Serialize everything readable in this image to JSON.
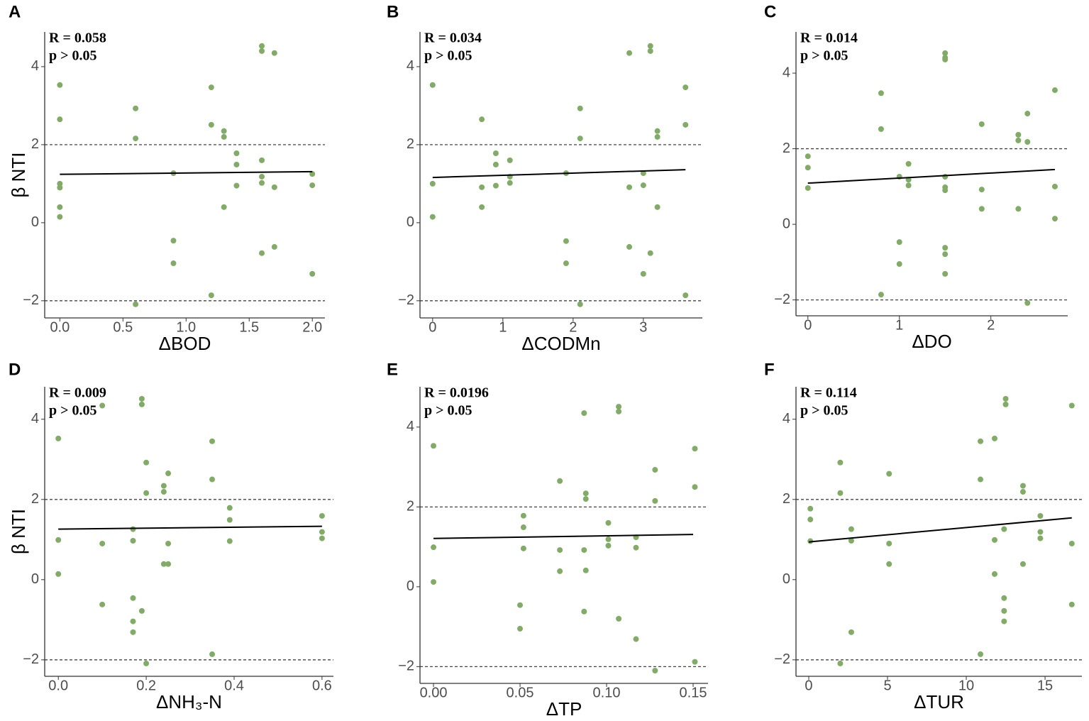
{
  "chart_data": [
    {
      "type": "scatter",
      "panel": "A",
      "annotations": [
        "R = 0.058",
        "p > 0.05"
      ],
      "xlabel": "ΔBOD",
      "ylabel": "β NTI",
      "xlim": [
        -0.12,
        2.1
      ],
      "ylim": [
        -2.44,
        4.89
      ],
      "xticks": [
        {
          "value": 0,
          "label": "0.0"
        },
        {
          "value": 0.5,
          "label": "0.5"
        },
        {
          "value": 1,
          "label": "1.0"
        },
        {
          "value": 1.5,
          "label": "1.5"
        },
        {
          "value": 2,
          "label": "2.0"
        }
      ],
      "yticks": [
        {
          "value": -2,
          "label": "−2"
        },
        0,
        2,
        4
      ],
      "hlines": [
        -2,
        2
      ],
      "color": "#82ab68",
      "x": [
        0,
        0,
        0,
        0,
        0,
        0,
        0.6,
        0.6,
        0.6,
        0.9,
        0.9,
        0.9,
        1.2,
        1.2,
        1.2,
        1.3,
        1.3,
        1.3,
        1.4,
        1.4,
        1.4,
        1.6,
        1.6,
        1.6,
        1.6,
        1.6,
        1.6,
        1.7,
        1.7,
        1.7,
        2.0,
        2.0,
        2.0
      ],
      "y": [
        3.53,
        2.65,
        1.0,
        0.9,
        0.4,
        0.15,
        2.93,
        2.16,
        -2.09,
        1.27,
        -0.46,
        -1.04,
        3.47,
        2.51,
        -1.86,
        2.35,
        2.2,
        0.4,
        1.78,
        1.49,
        0.95,
        4.53,
        4.4,
        1.6,
        1.18,
        1.02,
        -0.78,
        4.35,
        0.91,
        -0.62,
        1.25,
        0.96,
        -1.31
      ],
      "fit": {
        "x": [
          0,
          2.0
        ],
        "y": [
          1.24,
          1.31
        ]
      }
    },
    {
      "type": "scatter",
      "panel": "B",
      "annotations": [
        "R = 0.034",
        "p > 0.05"
      ],
      "xlabel": "ΔCODMn",
      "xlim": [
        -0.18,
        3.84
      ],
      "ylim": [
        -2.44,
        4.89
      ],
      "xticks": [
        0,
        1,
        2,
        3
      ],
      "yticks": [
        {
          "value": -2,
          "label": "−2"
        },
        0,
        2,
        4
      ],
      "hlines": [
        -2,
        2
      ],
      "color": "#82ab68",
      "x": [
        0,
        0,
        0,
        0.7,
        0.7,
        0.7,
        0.9,
        0.9,
        0.9,
        1.1,
        1.1,
        1.1,
        1.9,
        1.9,
        1.9,
        2.1,
        2.1,
        2.1,
        2.8,
        2.8,
        2.8,
        3.0,
        3.0,
        3.0,
        3.1,
        3.1,
        3.1,
        3.2,
        3.2,
        3.2,
        3.6,
        3.6,
        3.6
      ],
      "y": [
        3.53,
        1.0,
        0.15,
        2.65,
        0.91,
        0.4,
        1.78,
        1.49,
        0.95,
        1.6,
        1.18,
        1.02,
        1.27,
        -0.47,
        -1.04,
        2.93,
        2.16,
        -2.09,
        4.35,
        0.91,
        -0.62,
        1.27,
        0.96,
        -1.31,
        4.53,
        4.4,
        -0.78,
        2.35,
        2.2,
        0.4,
        3.47,
        2.51,
        -1.86
      ],
      "fit": {
        "x": [
          0,
          3.6
        ],
        "y": [
          1.16,
          1.36
        ]
      }
    },
    {
      "type": "scatter",
      "panel": "C",
      "annotations": [
        "R = 0.014",
        "p > 0.05"
      ],
      "xlabel": "ΔDO",
      "xlim": [
        -0.13,
        2.84
      ],
      "ylim": [
        -2.42,
        5.09
      ],
      "xticks": [
        0,
        1,
        2
      ],
      "yticks": [
        {
          "value": -2,
          "label": "−2"
        },
        0,
        2,
        4
      ],
      "hlines": [
        -2,
        2
      ],
      "color": "#82ab68",
      "x": [
        0,
        0,
        0,
        0.8,
        0.8,
        0.8,
        1.0,
        1.0,
        1.0,
        1.1,
        1.1,
        1.1,
        1.5,
        1.5,
        1.5,
        1.5,
        1.5,
        1.5,
        1.5,
        1.5,
        1.5,
        1.9,
        1.9,
        1.9,
        2.3,
        2.3,
        2.3,
        2.4,
        2.4,
        2.4,
        2.7,
        2.7,
        2.7
      ],
      "y": [
        1.8,
        1.5,
        0.96,
        3.47,
        2.52,
        -1.86,
        1.26,
        -0.47,
        -1.05,
        1.6,
        1.18,
        1.03,
        4.53,
        4.41,
        4.36,
        1.26,
        0.98,
        0.9,
        -0.62,
        -0.79,
        -1.31,
        2.65,
        0.92,
        0.41,
        2.37,
        2.22,
        0.41,
        2.93,
        2.18,
        -2.08,
        3.55,
        1.0,
        0.15
      ],
      "fit": {
        "x": [
          0,
          2.7
        ],
        "y": [
          1.09,
          1.45
        ]
      }
    },
    {
      "type": "scatter",
      "panel": "D",
      "annotations": [
        "R = 0.009",
        "p > 0.05"
      ],
      "xlabel": "ΔNH₃-N",
      "ylabel": "β NTI",
      "xlim": [
        -0.031,
        0.626
      ],
      "ylim": [
        -2.41,
        4.81
      ],
      "xticks": [
        {
          "value": 0,
          "label": "0.0"
        },
        0.2,
        0.4,
        0.6
      ],
      "yticks": [
        {
          "value": -2,
          "label": "−2"
        },
        0,
        2,
        4
      ],
      "hlines": [
        -2,
        2
      ],
      "color": "#82ab68",
      "x": [
        0,
        0,
        0,
        0.1,
        0.1,
        0.1,
        0.17,
        0.17,
        0.17,
        0.17,
        0.17,
        0.19,
        0.19,
        0.19,
        0.2,
        0.2,
        0.2,
        0.24,
        0.24,
        0.24,
        0.25,
        0.25,
        0.25,
        0.35,
        0.35,
        0.35,
        0.39,
        0.39,
        0.39,
        0.6,
        0.6,
        0.6
      ],
      "y": [
        3.52,
        0.99,
        0.14,
        4.34,
        0.9,
        -0.62,
        1.26,
        0.97,
        -0.46,
        -1.04,
        -1.31,
        4.51,
        4.37,
        -0.78,
        2.92,
        2.16,
        -2.09,
        2.34,
        2.19,
        0.39,
        2.65,
        0.9,
        0.39,
        3.45,
        2.5,
        -1.86,
        1.79,
        1.49,
        0.96,
        1.59,
        1.19,
        1.03
      ],
      "fit": {
        "x": [
          0,
          0.6
        ],
        "y": [
          1.26,
          1.33
        ]
      }
    },
    {
      "type": "scatter",
      "panel": "E",
      "annotations": [
        "R = 0.0196",
        "p > 0.05"
      ],
      "xlabel": "ΔTP",
      "xlim": [
        -0.0078,
        0.1586
      ],
      "ylim": [
        -2.42,
        5.01
      ],
      "xticks": [
        {
          "value": 0,
          "label": "0.00"
        },
        0.05,
        {
          "value": 0.1,
          "label": "0.10"
        },
        0.15
      ],
      "yticks": [
        {
          "value": -2,
          "label": "−2"
        },
        0,
        2,
        4
      ],
      "hlines": [
        -2,
        2
      ],
      "color": "#82ab68",
      "x": [
        0,
        0,
        0,
        0.05,
        0.05,
        0.052,
        0.052,
        0.052,
        0.073,
        0.073,
        0.073,
        0.087,
        0.087,
        0.087,
        0.088,
        0.088,
        0.088,
        0.101,
        0.101,
        0.101,
        0.107,
        0.107,
        0.107,
        0.117,
        0.117,
        0.117,
        0.128,
        0.128,
        0.128,
        0.151,
        0.151,
        0.151
      ],
      "y": [
        3.53,
        0.99,
        0.12,
        -0.46,
        -1.05,
        1.78,
        1.49,
        0.96,
        2.65,
        0.92,
        0.39,
        4.35,
        0.92,
        -0.62,
        2.34,
        2.2,
        0.41,
        1.6,
        1.19,
        1.03,
        4.51,
        4.39,
        -0.8,
        1.24,
        0.98,
        -1.31,
        2.93,
        2.15,
        -2.1,
        3.46,
        2.5,
        -1.88
      ],
      "fit": {
        "x": [
          0,
          0.15
        ],
        "y": [
          1.21,
          1.31
        ]
      }
    },
    {
      "type": "scatter",
      "panel": "F",
      "annotations": [
        "R = 0.114",
        "p > 0.05"
      ],
      "xlabel": "ΔTUR",
      "xlim": [
        -0.81,
        17.34
      ],
      "ylim": [
        -2.41,
        4.81
      ],
      "xticks": [
        0,
        5,
        10,
        15
      ],
      "yticks": [
        {
          "value": -2,
          "label": "−2"
        },
        0,
        2,
        4
      ],
      "hlines": [
        -2,
        2
      ],
      "color": "#82ab68",
      "x": [
        0.1,
        0.1,
        0.1,
        2.0,
        2.0,
        2.0,
        2.7,
        2.7,
        2.7,
        5.1,
        5.1,
        5.1,
        10.9,
        10.9,
        10.9,
        11.8,
        11.8,
        11.8,
        12.4,
        12.4,
        12.4,
        12.4,
        12.5,
        12.5,
        13.6,
        13.6,
        13.6,
        14.7,
        14.7,
        14.7,
        16.7,
        16.7,
        16.7
      ],
      "y": [
        1.77,
        1.5,
        0.96,
        2.92,
        2.16,
        -2.09,
        1.26,
        0.97,
        -1.31,
        2.64,
        0.9,
        0.39,
        3.45,
        2.5,
        -1.86,
        3.52,
        0.99,
        0.14,
        1.26,
        -0.46,
        -0.78,
        -1.04,
        4.51,
        4.37,
        2.34,
        2.19,
        0.39,
        1.59,
        1.19,
        1.03,
        4.34,
        0.9,
        -0.62
      ],
      "fit": {
        "x": [
          0,
          16.7
        ],
        "y": [
          0.94,
          1.54
        ]
      }
    }
  ]
}
